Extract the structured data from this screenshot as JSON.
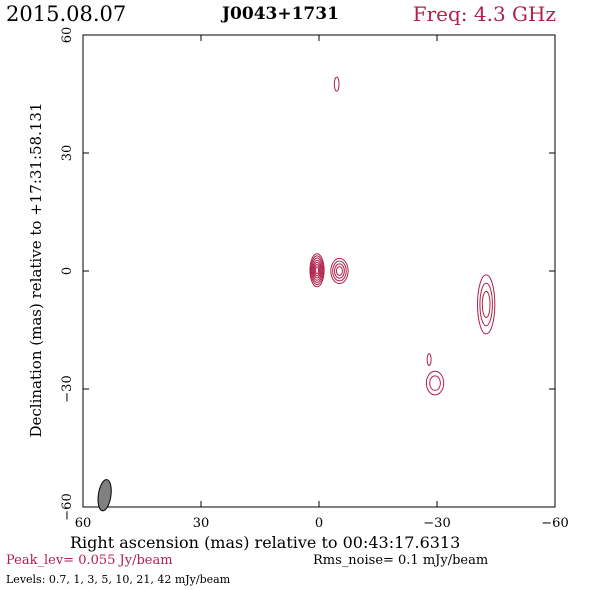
{
  "header": {
    "date": "2015.08.07",
    "source": "J0043+1731",
    "frequency": "Freq: 4.3 GHz"
  },
  "colors": {
    "contour": "#b0204a",
    "accent_text": "#b0204a",
    "beam_fill": "#808080"
  },
  "footer": {
    "peak_level": "Peak_lev=  0.055 Jy/beam",
    "rms_noise": "Rms_noise=  0.1 mJy/beam",
    "levels": "Levels: 0.7,   1,   3,   5,  10,  21,  42 mJy/beam"
  },
  "chart_data": {
    "type": "contour",
    "title": "J0043+1731",
    "xlabel": "Right ascension (mas) relative to 00:43:17.6313",
    "ylabel": "Declination (mas) relative to +17:31:58.131",
    "xlim": [
      60,
      -60
    ],
    "ylim": [
      -60,
      60
    ],
    "x_ticks": [
      60,
      30,
      0,
      -30,
      -60
    ],
    "y_ticks": [
      -60,
      -30,
      0,
      30,
      60
    ],
    "x_tick_labels": [
      "60",
      "30",
      "0",
      "−30",
      "−60"
    ],
    "y_tick_labels": [
      "−60",
      "−30",
      "0",
      "30",
      "60"
    ],
    "contour_levels_mJy_per_beam": [
      0.7,
      1,
      3,
      5,
      10,
      21,
      42
    ],
    "peak_Jy_per_beam": 0.055,
    "rms_mJy_per_beam": 0.1,
    "components": [
      {
        "name": "core",
        "x": 0.5,
        "y": 0.2,
        "rx": 1.8,
        "ry": 4.2,
        "contours": 7
      },
      {
        "name": "core-east-knot",
        "x": -5.2,
        "y": 0.0,
        "rx": 2.2,
        "ry": 3.2,
        "contours": 4
      },
      {
        "name": "north-spot",
        "x": -4.5,
        "y": 47.5,
        "rx": 0.6,
        "ry": 1.8,
        "contours": 1
      },
      {
        "name": "west-jet",
        "x": -42.5,
        "y": -8.5,
        "rx": 2.2,
        "ry": 7.5,
        "contours": 3
      },
      {
        "name": "southwest-blob",
        "x": -29.5,
        "y": -28.5,
        "rx": 2.2,
        "ry": 3.0,
        "contours": 2
      },
      {
        "name": "southwest-spot",
        "x": -28.0,
        "y": -22.5,
        "rx": 0.5,
        "ry": 1.5,
        "contours": 1
      }
    ],
    "beam": {
      "x": 54.5,
      "y": -57,
      "major": 4.0,
      "minor": 1.6,
      "pa_deg": 8
    }
  }
}
